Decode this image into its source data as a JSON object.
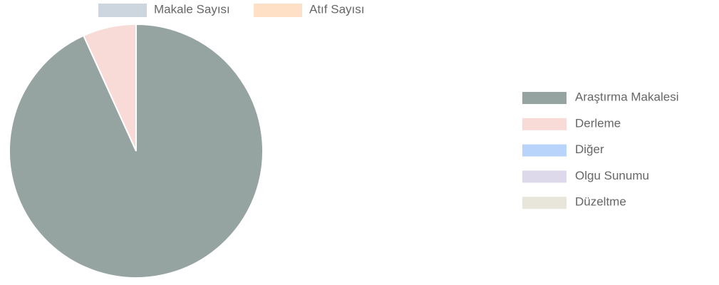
{
  "top_legend": [
    {
      "label": "Makale Sayısı",
      "color": "#cdd5de"
    },
    {
      "label": "Atıf Sayısı",
      "color": "#fde0c5"
    }
  ],
  "chart_data": {
    "type": "pie",
    "categories": [
      "Araştırma Makalesi",
      "Derleme",
      "Diğer",
      "Olgu Sunumu",
      "Düzeltme"
    ],
    "values": [
      93.2,
      6.8,
      0,
      0,
      0
    ],
    "colors": [
      "#95a3a1",
      "#f8dad6",
      "#b8d4fa",
      "#ddd9ea",
      "#e8e6da"
    ],
    "legend": "right"
  }
}
